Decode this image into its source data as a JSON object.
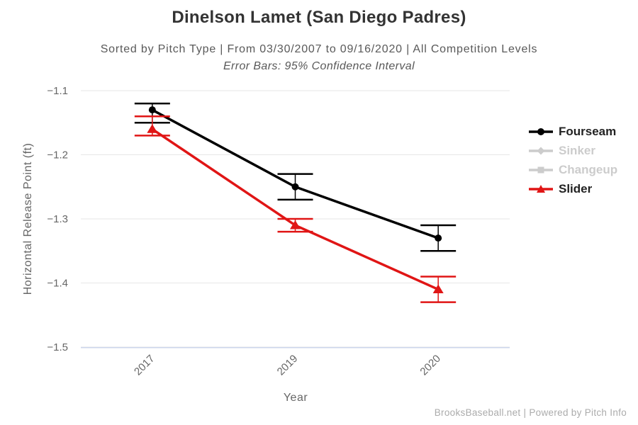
{
  "header": {
    "title": "Dinelson Lamet (San Diego Padres)",
    "subtitle": "Sorted by Pitch Type | From 03/30/2007 to 09/16/2020 | All Competition Levels",
    "error_note": "Error Bars: 95% Confidence Interval"
  },
  "footer": {
    "credits": "BrooksBaseball.net | Powered by Pitch Info"
  },
  "chart_data": {
    "type": "line",
    "title": "Dinelson Lamet (San Diego Padres)",
    "subtitle": "Sorted by Pitch Type | From 03/30/2007 to 09/16/2020 | All Competition Levels",
    "annotation": "Error Bars: 95% Confidence Interval",
    "xlabel": "Year",
    "ylabel": "Horizontal Release Point (ft)",
    "categories": [
      "2017",
      "2019",
      "2020"
    ],
    "ylim": [
      -1.5,
      -1.1
    ],
    "yticks": [
      -1.1,
      -1.2,
      -1.3,
      -1.4,
      -1.5
    ],
    "grid": true,
    "legend_position": "right",
    "grid_color": "#e6e6e6",
    "axis_line_color": "#ccd6eb",
    "disabled_color": "#cccccc",
    "legend_text_color": "#222222",
    "series": [
      {
        "name": "Fourseam",
        "color": "#000000",
        "marker": "circle",
        "visible": true,
        "values": [
          -1.13,
          -1.25,
          -1.33
        ],
        "ci_high": [
          -1.12,
          -1.23,
          -1.31
        ],
        "ci_low": [
          -1.15,
          -1.27,
          -1.35
        ]
      },
      {
        "name": "Sinker",
        "color": "#cccccc",
        "marker": "diamond",
        "visible": false,
        "values": [],
        "ci_high": [],
        "ci_low": []
      },
      {
        "name": "Changeup",
        "color": "#cccccc",
        "marker": "square",
        "visible": false,
        "values": [],
        "ci_high": [],
        "ci_low": []
      },
      {
        "name": "Slider",
        "color": "#e01515",
        "marker": "triangle",
        "visible": true,
        "values": [
          -1.16,
          -1.31,
          -1.41
        ],
        "ci_high": [
          -1.14,
          -1.3,
          -1.39
        ],
        "ci_low": [
          -1.17,
          -1.32,
          -1.43
        ]
      }
    ]
  }
}
